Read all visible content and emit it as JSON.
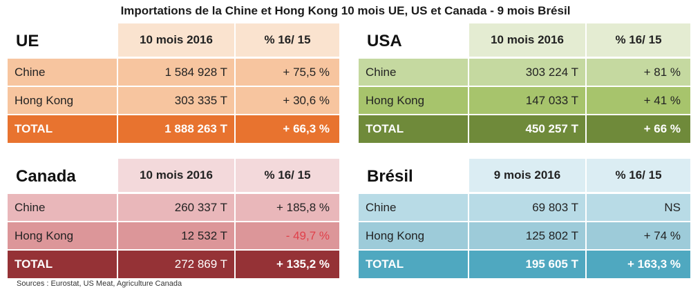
{
  "title": "Importations de la Chine et Hong Kong 10 mois UE, US et Canada - 9 mois Brésil",
  "sources": "Sources : Eurostat, US Meat, Agriculture Canada",
  "tables": {
    "ue": {
      "region": "UE",
      "period": "10 mois 2016",
      "change_header": "% 16/ 15",
      "rows": [
        {
          "label": "Chine",
          "volume": "1 584 928 T",
          "change": "+ 75,5 %"
        },
        {
          "label": "Hong Kong",
          "volume": "303 335 T",
          "change": "+ 30,6 %"
        },
        {
          "label": "TOTAL",
          "volume": "1 888 263 T",
          "change": "+ 66,3 %"
        }
      ]
    },
    "usa": {
      "region": "USA",
      "period": "10 mois 2016",
      "change_header": "% 16/ 15",
      "rows": [
        {
          "label": "Chine",
          "volume": "303 224 T",
          "change": "+ 81 %"
        },
        {
          "label": "Hong Kong",
          "volume": "147 033 T",
          "change": "+ 41 %"
        },
        {
          "label": "TOTAL",
          "volume": "450 257 T",
          "change": "+ 66 %"
        }
      ]
    },
    "canada": {
      "region": "Canada",
      "period": "10 mois 2016",
      "change_header": "% 16/ 15",
      "rows": [
        {
          "label": "Chine",
          "volume": "260 337 T",
          "change": "+ 185,8 %"
        },
        {
          "label": "Hong Kong",
          "volume": "12 532 T",
          "change": "- 49,7 %"
        },
        {
          "label": "TOTAL",
          "volume": "272 869 T",
          "change": "+ 135,2 %"
        }
      ]
    },
    "bresil": {
      "region": "Brésil",
      "period": "9 mois 2016",
      "change_header": "% 16/ 15",
      "rows": [
        {
          "label": "Chine",
          "volume": "69 803 T",
          "change": "NS"
        },
        {
          "label": "Hong Kong",
          "volume": "125 802 T",
          "change": "+ 74 %"
        },
        {
          "label": "TOTAL",
          "volume": "195 605 T",
          "change": "+ 163,3 %"
        }
      ]
    }
  },
  "colors": {
    "ue_total": "#e8732f",
    "usa_total": "#6f8a3a",
    "canada_total": "#953236",
    "bresil_total": "#4fa8c0",
    "negative": "#e0404a"
  }
}
